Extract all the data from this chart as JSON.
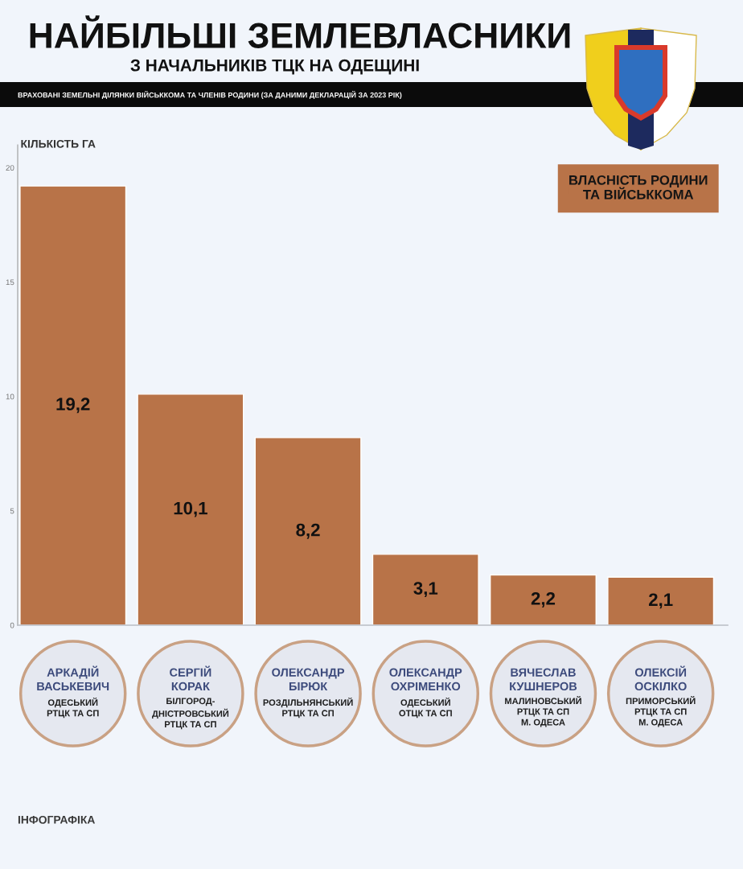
{
  "chart_data": {
    "type": "bar",
    "title": "НАЙБІЛЬШІ ЗЕМЛЕВЛАСНИКИ",
    "subtitle": "З НАЧАЛЬНИКІВ ТЦК НА ОДЕЩИНІ",
    "ylabel": "КІЛЬКІСТЬ ГА",
    "categories": [
      "АРКАДІЙ\nВАСЬКЕВИЧ\n\nОДЕСЬКИЙ\nРТЦК ТА СП",
      "СЕРГІЙ\nКОРАК\n\nБІЛГОРОД-\nДНІСТРОВСЬКИЙ\nРТЦК ТА СП",
      "ОЛЕКСАНДР\nБІРЮК\n\nРОЗДІЛЬНЯНСЬКИЙ\nРТЦК ТА СП",
      "ОЛЕКСАНДР\nОХРІМЕНКО\n\nОДЕСЬКИЙ\nОТЦК ТА СП",
      "ВЯЧЕСЛАВ\nКУШНЕРОВ\n\nМАЛИНОВСЬКИЙ\nРТЦК ТА СП\nМ. ОДЕСА",
      "ОЛЕКСІЙ\nОСКІЛКО\n\nПРИМОРСЬКИЙ\nРТЦК ТА СП\nМ. ОДЕСА"
    ],
    "series": [
      {
        "name": "ВЛАСНІСТЬ РОДИНИ\nТА ВІЙСЬККОМА",
        "color": "#b87348",
        "values": [
          19.2,
          10.1,
          8.2,
          3.1,
          2.2,
          2.1
        ],
        "value_labels": [
          "19,2",
          "10,1",
          "8,2",
          "3,1",
          "2,2",
          "2,1"
        ]
      }
    ],
    "ylim": [
      0,
      21
    ],
    "yticks": [
      0,
      5,
      10,
      15,
      20
    ],
    "legend": "top right",
    "annotations": [
      "ВРАХОВАНІ ЗЕМЕЛЬНІ ДІЛЯНКИ ВІЙСЬККОМА ТА ЧЛЕНІВ РОДИНИ (ЗА ДАНИМИ ДЕКЛАРАЦІЙ ЗА 2023 РІК)",
      "ІНФОГРАФІКА"
    ]
  }
}
